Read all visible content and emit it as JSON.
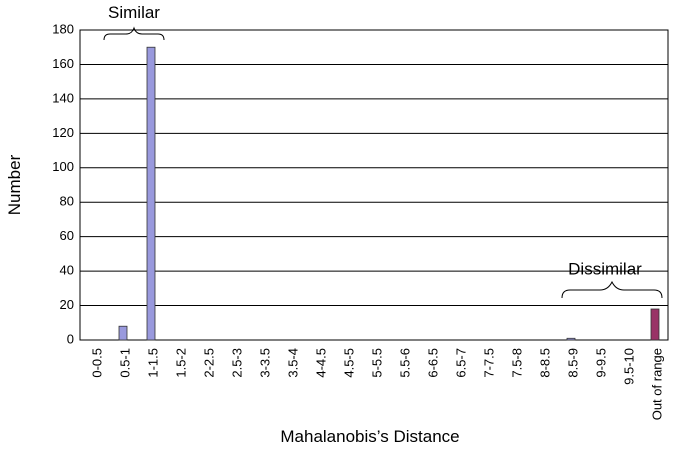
{
  "chart_data": {
    "type": "bar",
    "x_label": "Mahalanobis’s Distance",
    "y_label": "Number",
    "categories": [
      "0-0.5",
      "0.5-1",
      "1-1.5",
      "1.5-2",
      "2-2.5",
      "2.5-3",
      "3-3.5",
      "3.5-4",
      "4-4.5",
      "4.5-5",
      "5-5.5",
      "5.5-6",
      "6-6.5",
      "6.5-7",
      "7-7.5",
      "7.5-8",
      "8-8.5",
      "8.5-9",
      "9-9.5",
      "9.5-10",
      "Out of range"
    ],
    "values": [
      0,
      8,
      170,
      0,
      0,
      0,
      0,
      0,
      0,
      0,
      0,
      0,
      0,
      0,
      0,
      0,
      0,
      1,
      0,
      0,
      18
    ],
    "colors": [
      "#9999dd",
      "#9999dd",
      "#9999dd",
      "#9999dd",
      "#9999dd",
      "#9999dd",
      "#9999dd",
      "#9999dd",
      "#9999dd",
      "#9999dd",
      "#9999dd",
      "#9999dd",
      "#9999dd",
      "#9999dd",
      "#9999dd",
      "#9999dd",
      "#9999dd",
      "#9999dd",
      "#9999dd",
      "#9999dd",
      "#993366"
    ],
    "ylim": [
      0,
      180
    ],
    "yticks": [
      0,
      20,
      40,
      60,
      80,
      100,
      120,
      140,
      160,
      180
    ],
    "grid": true,
    "annotations": [
      "Similar",
      "Dissimilar"
    ]
  }
}
